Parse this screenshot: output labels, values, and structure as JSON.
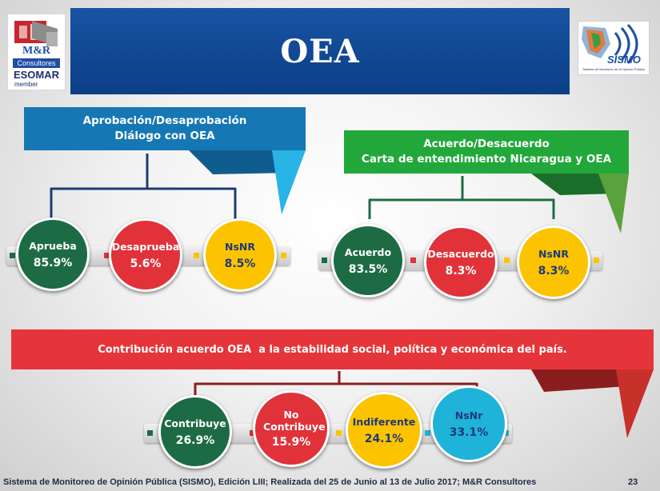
{
  "title": "OEA",
  "logos": {
    "left": {
      "line1": "M&R",
      "line2": "Consultores",
      "line3": "ESOMAR",
      "line4": "member"
    },
    "right": {
      "name": "SISMO",
      "caption": "Sistema de Monitoreo de la Opinión Pública"
    }
  },
  "chart_data": [
    {
      "type": "table",
      "title_lines": [
        "Aprobación/Desaprobación",
        "Diálogo con OEA"
      ],
      "categories": [
        "Aprueba",
        "Desaprueba",
        "NsNR"
      ],
      "values": [
        "85.9%",
        "5.6%",
        "8.5%"
      ],
      "colors": [
        "#1d6b44",
        "#e1323a",
        "#fcc300"
      ]
    },
    {
      "type": "table",
      "title_lines": [
        "Acuerdo/Desacuerdo",
        "Carta de entendimiento Nicaragua y OEA"
      ],
      "categories": [
        "Acuerdo",
        "Desacuerdo",
        "NsNR"
      ],
      "values": [
        "83.5%",
        "8.3%",
        "8.3%"
      ],
      "colors": [
        "#1d6b44",
        "#e1323a",
        "#fcc300"
      ]
    },
    {
      "type": "table",
      "title_lines": [
        "Contribución acuerdo OEA  a la estabilidad social, política y económica del país."
      ],
      "categories": [
        "Contribuye",
        "No Contribuye",
        "Indiferente",
        "NsNr"
      ],
      "values": [
        "26.9%",
        "15.9%",
        "24.1%",
        "33.1%"
      ],
      "colors": [
        "#1d6b44",
        "#e1323a",
        "#fcc300",
        "#1fb3d9"
      ]
    }
  ],
  "footer": {
    "text": "Sistema de Monitoreo de Opinión Pública (SISMO), Edición LIII; Realizada del 25 de Junio al 13 de Julio 2017; M&R Consultores",
    "page": "23"
  }
}
